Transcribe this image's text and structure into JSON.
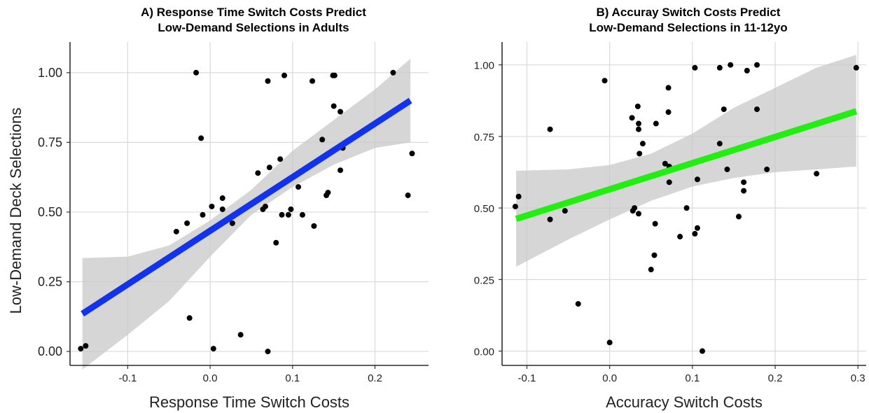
{
  "chart_data": [
    {
      "type": "scatter",
      "title_lines": [
        "A) Response Time Switch Costs Predict",
        "Low-Demand Selections in Adults"
      ],
      "xlabel": "Response Time Switch Costs",
      "ylabel": "Low-Demand Deck Selections",
      "xlim": [
        -0.17,
        0.265
      ],
      "ylim": [
        -0.05,
        1.11
      ],
      "xticks": [
        -0.1,
        0.0,
        0.1,
        0.2
      ],
      "xtick_labels": [
        "-0.1",
        "0.0",
        "0.1",
        "0.2"
      ],
      "yticks": [
        0.0,
        0.25,
        0.5,
        0.75,
        1.0
      ],
      "ytick_labels": [
        "0.00",
        "0.25",
        "0.50",
        "0.75",
        "1.00"
      ],
      "grid": true,
      "line_color": "#1133ee",
      "points": [
        [
          -0.157,
          0.01
        ],
        [
          -0.151,
          0.02
        ],
        [
          -0.025,
          0.12
        ],
        [
          0.004,
          0.01
        ],
        [
          0.037,
          0.06
        ],
        [
          0.07,
          0.0
        ],
        [
          -0.017,
          1.0
        ],
        [
          -0.011,
          0.765
        ],
        [
          -0.041,
          0.43
        ],
        [
          -0.028,
          0.46
        ],
        [
          -0.009,
          0.49
        ],
        [
          0.002,
          0.52
        ],
        [
          0.015,
          0.55
        ],
        [
          0.015,
          0.51
        ],
        [
          0.027,
          0.46
        ],
        [
          0.058,
          0.64
        ],
        [
          0.064,
          0.51
        ],
        [
          0.067,
          0.52
        ],
        [
          0.072,
          0.66
        ],
        [
          0.07,
          0.97
        ],
        [
          0.09,
          0.99
        ],
        [
          0.08,
          0.39
        ],
        [
          0.085,
          0.69
        ],
        [
          0.087,
          0.49
        ],
        [
          0.095,
          0.49
        ],
        [
          0.098,
          0.51
        ],
        [
          0.107,
          0.59
        ],
        [
          0.112,
          0.49
        ],
        [
          0.124,
          0.97
        ],
        [
          0.126,
          0.45
        ],
        [
          0.136,
          0.76
        ],
        [
          0.141,
          0.56
        ],
        [
          0.143,
          0.57
        ],
        [
          0.149,
          0.99
        ],
        [
          0.151,
          0.99
        ],
        [
          0.15,
          0.88
        ],
        [
          0.158,
          0.86
        ],
        [
          0.158,
          0.65
        ],
        [
          0.161,
          0.73
        ],
        [
          0.222,
          1.0
        ],
        [
          0.24,
          0.56
        ],
        [
          0.245,
          0.71
        ]
      ],
      "fit": {
        "x": [
          -0.155,
          0.243
        ],
        "y": [
          0.135,
          0.9
        ]
      },
      "band": {
        "x": [
          -0.155,
          -0.1,
          -0.05,
          0.0,
          0.05,
          0.1,
          0.15,
          0.2,
          0.243
        ],
        "upper": [
          0.335,
          0.34,
          0.38,
          0.47,
          0.58,
          0.72,
          0.83,
          0.94,
          1.05
        ],
        "lower": [
          -0.065,
          0.06,
          0.18,
          0.34,
          0.49,
          0.59,
          0.67,
          0.73,
          0.75
        ]
      }
    },
    {
      "type": "scatter",
      "title_lines": [
        "B) Accuray Switch Costs Predict",
        "Low-Demand Selections in 11-12yo"
      ],
      "xlabel": "Accuracy Switch Costs",
      "ylabel": "",
      "xlim": [
        -0.13,
        0.31
      ],
      "ylim": [
        -0.05,
        1.08
      ],
      "xticks": [
        -0.1,
        0.0,
        0.1,
        0.2,
        0.3
      ],
      "xtick_labels": [
        "-0.1",
        "0.0",
        "0.1",
        "0.2",
        "0.3"
      ],
      "yticks": [
        0.0,
        0.25,
        0.5,
        0.75,
        1.0
      ],
      "ytick_labels": [
        "0.00",
        "0.25",
        "0.50",
        "0.75",
        "1.00"
      ],
      "grid": true,
      "line_color": "#22ee11",
      "points": [
        [
          -0.114,
          0.505
        ],
        [
          -0.11,
          0.54
        ],
        [
          -0.072,
          0.775
        ],
        [
          -0.072,
          0.46
        ],
        [
          -0.054,
          0.49
        ],
        [
          -0.038,
          0.165
        ],
        [
          -0.006,
          0.945
        ],
        [
          0.0,
          0.03
        ],
        [
          0.027,
          0.815
        ],
        [
          0.028,
          0.49
        ],
        [
          0.03,
          0.5
        ],
        [
          0.034,
          0.855
        ],
        [
          0.035,
          0.795
        ],
        [
          0.035,
          0.775
        ],
        [
          0.036,
          0.69
        ],
        [
          0.035,
          0.48
        ],
        [
          0.04,
          0.725
        ],
        [
          0.05,
          0.285
        ],
        [
          0.054,
          0.335
        ],
        [
          0.055,
          0.445
        ],
        [
          0.056,
          0.795
        ],
        [
          0.067,
          0.655
        ],
        [
          0.071,
          0.92
        ],
        [
          0.071,
          0.835
        ],
        [
          0.072,
          0.645
        ],
        [
          0.072,
          0.59
        ],
        [
          0.085,
          0.4
        ],
        [
          0.093,
          0.5
        ],
        [
          0.103,
          0.99
        ],
        [
          0.103,
          0.41
        ],
        [
          0.106,
          0.43
        ],
        [
          0.106,
          0.6
        ],
        [
          0.112,
          0.0
        ],
        [
          0.133,
          0.99
        ],
        [
          0.133,
          0.725
        ],
        [
          0.138,
          0.845
        ],
        [
          0.142,
          0.635
        ],
        [
          0.146,
          1.0
        ],
        [
          0.156,
          0.47
        ],
        [
          0.162,
          0.59
        ],
        [
          0.162,
          0.56
        ],
        [
          0.166,
          0.98
        ],
        [
          0.178,
          1.0
        ],
        [
          0.178,
          0.845
        ],
        [
          0.19,
          0.635
        ],
        [
          0.25,
          0.62
        ],
        [
          0.298,
          0.99
        ]
      ],
      "fit": {
        "x": [
          -0.113,
          0.298
        ],
        "y": [
          0.462,
          0.838
        ]
      },
      "band": {
        "x": [
          -0.113,
          -0.05,
          0.0,
          0.05,
          0.1,
          0.15,
          0.2,
          0.25,
          0.298
        ],
        "upper": [
          0.63,
          0.635,
          0.65,
          0.69,
          0.76,
          0.85,
          0.92,
          0.99,
          1.035
        ],
        "lower": [
          0.295,
          0.39,
          0.46,
          0.525,
          0.575,
          0.605,
          0.625,
          0.635,
          0.645
        ]
      }
    }
  ]
}
